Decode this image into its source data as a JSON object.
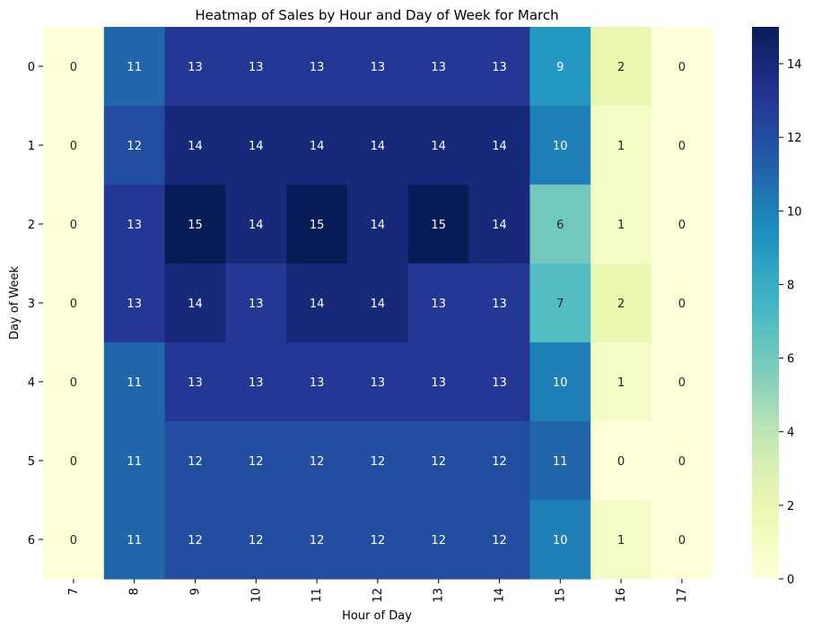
{
  "chart_data": {
    "type": "heatmap",
    "title": "Heatmap of Sales by Hour and Day of Week for March",
    "xlabel": "Hour of Day",
    "ylabel": "Day of Week",
    "x_categories": [
      "7",
      "8",
      "9",
      "10",
      "11",
      "12",
      "13",
      "14",
      "15",
      "16",
      "17"
    ],
    "y_categories": [
      "0",
      "1",
      "2",
      "3",
      "4",
      "5",
      "6"
    ],
    "values": [
      [
        0,
        11,
        13,
        13,
        13,
        13,
        13,
        13,
        9,
        2,
        0
      ],
      [
        0,
        12,
        14,
        14,
        14,
        14,
        14,
        14,
        10,
        1,
        0
      ],
      [
        0,
        13,
        15,
        14,
        15,
        14,
        15,
        14,
        6,
        1,
        0
      ],
      [
        0,
        13,
        14,
        13,
        14,
        14,
        13,
        13,
        7,
        2,
        0
      ],
      [
        0,
        11,
        13,
        13,
        13,
        13,
        13,
        13,
        10,
        1,
        0
      ],
      [
        0,
        11,
        12,
        12,
        12,
        12,
        12,
        12,
        11,
        0,
        0
      ],
      [
        0,
        11,
        12,
        12,
        12,
        12,
        12,
        12,
        10,
        1,
        0
      ]
    ],
    "colormap": "YlGnBu",
    "color_range": [
      0,
      15
    ],
    "colorbar_ticks": [
      0,
      2,
      4,
      6,
      8,
      10,
      12,
      14
    ],
    "annotations": true
  }
}
